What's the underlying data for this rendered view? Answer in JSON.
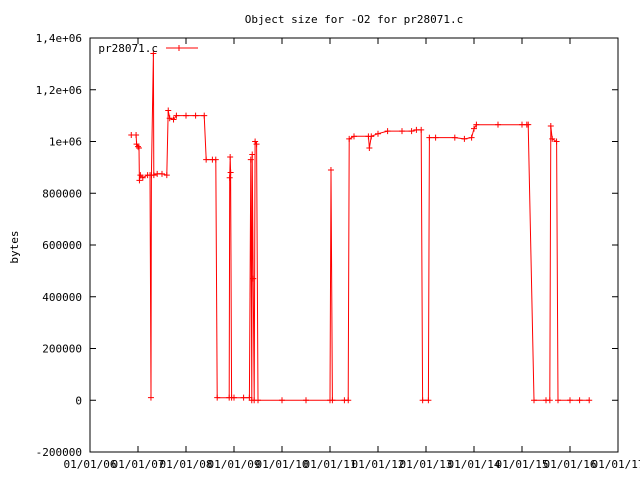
{
  "chart_data": {
    "type": "line",
    "title": "Object size for -O2 for pr28071.c",
    "xlabel": "",
    "ylabel": "bytes",
    "ylim": [
      -200000,
      1400000
    ],
    "yticks": [
      {
        "value": -200000,
        "label": "-200000"
      },
      {
        "value": 0,
        "label": "0"
      },
      {
        "value": 200000,
        "label": "200000"
      },
      {
        "value": 400000,
        "label": "400000"
      },
      {
        "value": 600000,
        "label": "600000"
      },
      {
        "value": 800000,
        "label": "800000"
      },
      {
        "value": 1000000,
        "label": "1e+06"
      },
      {
        "value": 1200000,
        "label": "1,2e+06"
      },
      {
        "value": 1400000,
        "label": "1,4e+06"
      }
    ],
    "xticks": [
      "01/01/06",
      "01/01/07",
      "01/01/08",
      "01/01/09",
      "01/01/10",
      "01/01/11",
      "01/01/12",
      "01/01/13",
      "01/01/14",
      "01/01/15",
      "01/01/16",
      "01/01/17"
    ],
    "xlim": [
      0,
      11
    ],
    "grid": false,
    "legend_position": "top-left",
    "series": [
      {
        "name": "pr28071.c",
        "color": "#ff0000",
        "points": [
          [
            0.86,
            1025000
          ],
          [
            0.96,
            1025000
          ],
          [
            0.97,
            990000
          ],
          [
            1.0,
            980000
          ],
          [
            1.02,
            975000
          ],
          [
            1.03,
            850000
          ],
          [
            1.05,
            870000
          ],
          [
            1.1,
            860000
          ],
          [
            1.2,
            870000
          ],
          [
            1.25,
            870000
          ],
          [
            1.27,
            10000
          ],
          [
            1.28,
            870000
          ],
          [
            1.32,
            1340000
          ],
          [
            1.33,
            870000
          ],
          [
            1.4,
            875000
          ],
          [
            1.5,
            875000
          ],
          [
            1.6,
            870000
          ],
          [
            1.63,
            1120000
          ],
          [
            1.66,
            1090000
          ],
          [
            1.74,
            1085000
          ],
          [
            1.8,
            1100000
          ],
          [
            2.0,
            1100000
          ],
          [
            2.2,
            1100000
          ],
          [
            2.38,
            1100000
          ],
          [
            2.42,
            930000
          ],
          [
            2.55,
            930000
          ],
          [
            2.62,
            930000
          ],
          [
            2.65,
            10000
          ],
          [
            2.9,
            10000
          ],
          [
            2.91,
            860000
          ],
          [
            2.92,
            940000
          ],
          [
            2.93,
            880000
          ],
          [
            2.95,
            10000
          ],
          [
            3.0,
            10000
          ],
          [
            3.2,
            10000
          ],
          [
            3.32,
            10000
          ],
          [
            3.35,
            930000
          ],
          [
            3.37,
            0
          ],
          [
            3.38,
            950000
          ],
          [
            3.4,
            470000
          ],
          [
            3.42,
            0
          ],
          [
            3.44,
            1000000
          ],
          [
            3.47,
            990000
          ],
          [
            3.5,
            0
          ],
          [
            4.0,
            0
          ],
          [
            4.5,
            0
          ],
          [
            5.0,
            0
          ],
          [
            5.02,
            890000
          ],
          [
            5.05,
            0
          ],
          [
            5.3,
            0
          ],
          [
            5.38,
            0
          ],
          [
            5.4,
            1010000
          ],
          [
            5.5,
            1020000
          ],
          [
            5.8,
            1020000
          ],
          [
            5.82,
            975000
          ],
          [
            5.86,
            1020000
          ],
          [
            6.0,
            1030000
          ],
          [
            6.2,
            1040000
          ],
          [
            6.5,
            1040000
          ],
          [
            6.7,
            1040000
          ],
          [
            6.8,
            1045000
          ],
          [
            6.9,
            1045000
          ],
          [
            6.93,
            0
          ],
          [
            7.05,
            0
          ],
          [
            7.07,
            1015000
          ],
          [
            7.2,
            1015000
          ],
          [
            7.6,
            1015000
          ],
          [
            7.8,
            1010000
          ],
          [
            7.95,
            1015000
          ],
          [
            8.0,
            1050000
          ],
          [
            8.05,
            1065000
          ],
          [
            8.5,
            1065000
          ],
          [
            9.0,
            1065000
          ],
          [
            9.1,
            1065000
          ],
          [
            9.13,
            1065000
          ],
          [
            9.25,
            0
          ],
          [
            9.5,
            0
          ],
          [
            9.58,
            0
          ],
          [
            9.6,
            1060000
          ],
          [
            9.63,
            1010000
          ],
          [
            9.72,
            1000000
          ],
          [
            9.75,
            0
          ],
          [
            10.0,
            0
          ],
          [
            10.2,
            0
          ],
          [
            10.4,
            0
          ]
        ]
      }
    ]
  }
}
